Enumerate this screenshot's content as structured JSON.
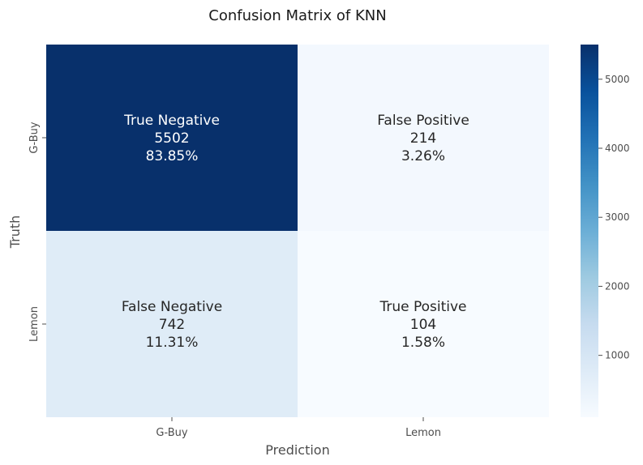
{
  "chart_data": {
    "type": "heatmap",
    "title": "Confusion Matrix of KNN",
    "xlabel": "Prediction",
    "ylabel": "Truth",
    "x_categories": [
      "G-Buy",
      "Lemon"
    ],
    "y_categories": [
      "G-Buy",
      "Lemon"
    ],
    "cells": [
      {
        "row": 0,
        "col": 0,
        "name": "True Negative",
        "value": 5502,
        "percent": "83.85%"
      },
      {
        "row": 0,
        "col": 1,
        "name": "False Positive",
        "value": 214,
        "percent": "3.26%"
      },
      {
        "row": 1,
        "col": 0,
        "name": "False Negative",
        "value": 742,
        "percent": "11.31%"
      },
      {
        "row": 1,
        "col": 1,
        "name": "True Positive",
        "value": 104,
        "percent": "1.58%"
      }
    ],
    "colormap": "Blues",
    "colorbar": {
      "min": 104,
      "max": 5502,
      "ticks": [
        1000,
        2000,
        3000,
        4000,
        5000
      ]
    }
  }
}
